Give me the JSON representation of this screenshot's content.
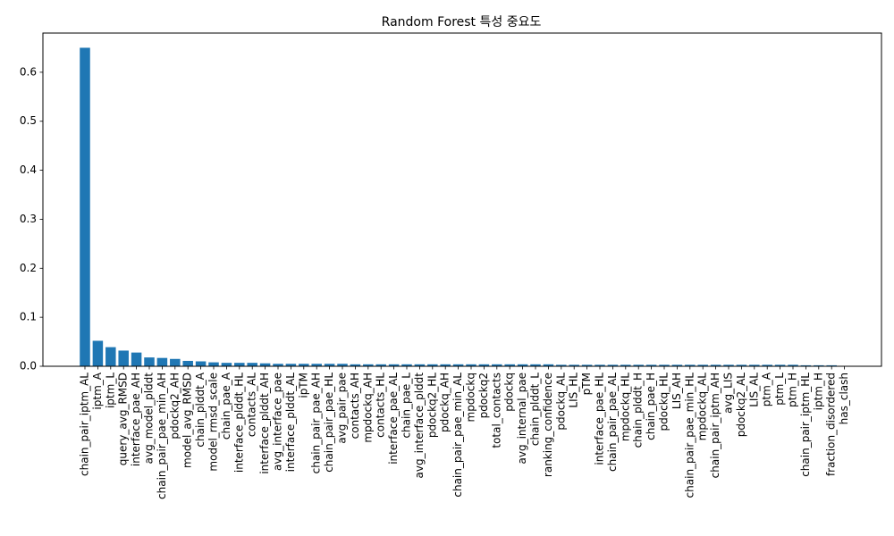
{
  "chart_data": {
    "type": "bar",
    "title": "Random Forest 특성 중요도",
    "xlabel": "",
    "ylabel": "",
    "ylim": [
      0,
      0.68
    ],
    "yticks": [
      "0.0",
      "0.1",
      "0.2",
      "0.3",
      "0.4",
      "0.5",
      "0.6"
    ],
    "grid": false,
    "bar_color": "#1f77b4",
    "categories": [
      "chain_pair_iptm_AL",
      "iptm_A",
      "iptm_L",
      "query_avg_RMSD",
      "interface_pae_AH",
      "avg_model_plddt",
      "chain_pair_pae_min_AH",
      "pdockq2_AH",
      "model_avg_RMSD",
      "chain_plddt_A",
      "model_rmsd_scale",
      "chain_pae_A",
      "interface_plddt_HL",
      "contacts_AL",
      "interface_plddt_AH",
      "avg_interface_pae",
      "interface_plddt_AL",
      "ipTM",
      "chain_pair_pae_AH",
      "chain_pair_pae_HL",
      "avg_pair_pae",
      "contacts_AH",
      "mpdockq_AH",
      "contacts_HL",
      "interface_pae_AL",
      "chain_pae_L",
      "avg_interface_plddt",
      "pdockq2_HL",
      "pdockq_AH",
      "chain_pair_pae_min_AL",
      "mpdockq",
      "pdockq2",
      "total_contacts",
      "pdockq",
      "avg_internal_pae",
      "chain_plddt_L",
      "ranking_confidence",
      "pdockq_AL",
      "LIS_HL",
      "pTM",
      "interface_pae_HL",
      "chain_pair_pae_AL",
      "mpdockq_HL",
      "chain_plddt_H",
      "chain_pae_H",
      "pdockq_HL",
      "LIS_AH",
      "chain_pair_pae_min_HL",
      "mpdockq_AL",
      "chain_pair_iptm_AH",
      "avg_LIS",
      "pdockq2_AL",
      "LIS_AL",
      "ptm_A",
      "ptm_L",
      "ptm_H",
      "chain_pair_iptm_HL",
      "iptm_H",
      "fraction_disordered",
      "has_clash"
    ],
    "values": [
      0.65,
      0.052,
      0.039,
      0.032,
      0.028,
      0.018,
      0.017,
      0.015,
      0.011,
      0.01,
      0.008,
      0.007,
      0.007,
      0.007,
      0.006,
      0.005,
      0.005,
      0.005,
      0.005,
      0.005,
      0.005,
      0.004,
      0.004,
      0.004,
      0.004,
      0.004,
      0.004,
      0.004,
      0.004,
      0.004,
      0.004,
      0.004,
      0.004,
      0.004,
      0.004,
      0.004,
      0.004,
      0.003,
      0.003,
      0.003,
      0.003,
      0.003,
      0.003,
      0.003,
      0.003,
      0.003,
      0.003,
      0.003,
      0.003,
      0.003,
      0.003,
      0.003,
      0.003,
      0.003,
      0.003,
      0.003,
      0.002,
      0.002,
      0.002,
      0.0
    ]
  }
}
